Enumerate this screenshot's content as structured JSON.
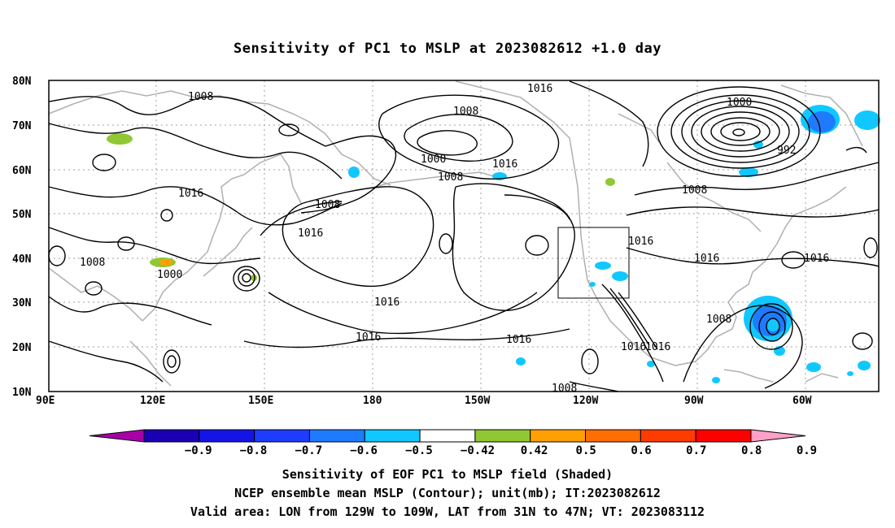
{
  "title": "Sensitivity of PC1 to MSLP at 2023082612 +1.0 day",
  "map": {
    "lat_ticks": [
      "80N",
      "70N",
      "60N",
      "50N",
      "40N",
      "30N",
      "20N",
      "10N"
    ],
    "lon_ticks": [
      "90E",
      "120E",
      "150E",
      "180",
      "150W",
      "120W",
      "90W",
      "60W"
    ],
    "valid_box": {
      "lon": [
        "129W",
        "109W"
      ],
      "lat": [
        "31N",
        "47N"
      ]
    },
    "contour_labels": [
      "1008",
      "1016",
      "1008",
      "1000",
      "1008",
      "1016",
      "1016",
      "1000",
      "992",
      "1016",
      "1008",
      "1008",
      "1008",
      "1016",
      "1016",
      "1016",
      "1016",
      "1016",
      "1016",
      "1016",
      "1008",
      "1016",
      "1008",
      "1000",
      "1008",
      "1008"
    ]
  },
  "colorbar": {
    "labels": [
      "−0.9",
      "−0.8",
      "−0.7",
      "−0.6",
      "−0.5",
      "−0.42",
      "0.42",
      "0.5",
      "0.6",
      "0.7",
      "0.8",
      "0.9"
    ],
    "colors": [
      "#a800a8",
      "#1a00b4",
      "#1414e6",
      "#1e3cff",
      "#1e7bff",
      "#10c8ff",
      "#ffffff",
      "#8fc832",
      "#ffa000",
      "#ff6e00",
      "#ff3c00",
      "#ff0000",
      "#ffa0c8"
    ]
  },
  "captions": {
    "line1": "Sensitivity of EOF PC1 to MSLP field (Shaded)",
    "line2": "NCEP ensemble mean MSLP (Contour); unit(mb); IT:2023082612",
    "line3": "Valid area: LON from 129W to 109W, LAT from 31N to 47N; VT: 2023083112"
  }
}
